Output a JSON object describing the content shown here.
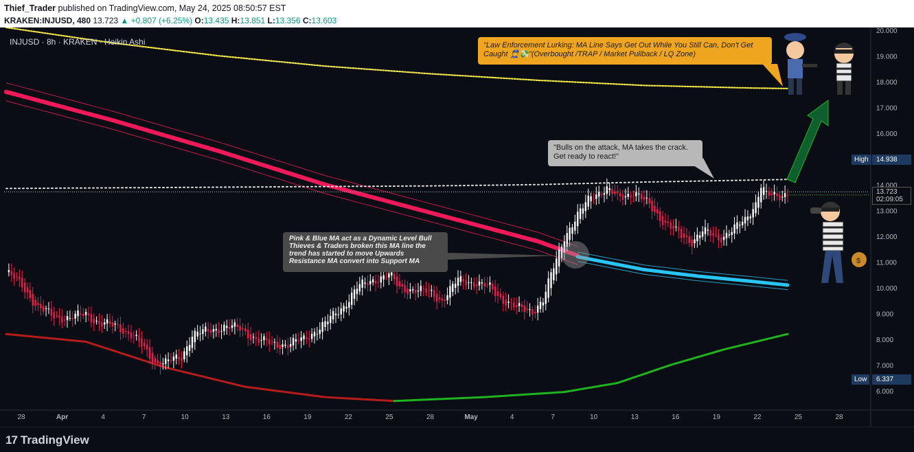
{
  "header": {
    "author": "Thief_Trader",
    "published": "published on TradingView.com, May 24, 2025 08:50:57 EST",
    "symbol": "KRAKEN:INJUSD, 480",
    "last": "13.723",
    "change": "▲ +0.807 (+6.25%)",
    "o_label": "O:",
    "o_value": "13.435",
    "h_label": "H:",
    "h_value": "13.851",
    "l_label": "L:",
    "l_value": "13.356",
    "c_label": "C:",
    "c_value": "13.603"
  },
  "legend": "INJUSD · 8h · KRAKEN · Heikin Ashi",
  "annotations": {
    "police": "\"Law Enforcement Lurking: MA Line Says Get Out While You Still Can, Don't Get Caught 👮💸\"(Overbought /TRAP / Market Pullback / LQ Zone)",
    "bulls": "\"Bulls on the attack, MA takes the crack. Get ready to react!\"",
    "ma_note": "Pink & Blue MA act as a Dynamic Level Bull Thieves & Traders broken this MA line the trend has started to move Upwards Resistance MA convert into Support MA"
  },
  "price_tags": {
    "high_label": "High",
    "high_value": "14.938",
    "low_label": "Low",
    "low_value": "6.337",
    "current_value": "13.723",
    "countdown": "02:09:05"
  },
  "footer": {
    "brand": "TradingView",
    "logo": "17"
  },
  "colors": {
    "up": "#ffffff",
    "down": "#e91e4c",
    "pink_ma": "#f0195a",
    "blue_ma": "#29c5f6",
    "yellow_ma": "#f3e74a",
    "red_ma": "#b71c1c",
    "green_ma": "#1fb31f",
    "bg": "#0b0d15"
  },
  "chart_data": {
    "type": "candlestick",
    "style": "Heikin Ashi",
    "timeframe": "8h",
    "x_tick_labels": [
      "28",
      "Apr",
      "4",
      "7",
      "10",
      "13",
      "16",
      "19",
      "22",
      "25",
      "28",
      "May",
      "4",
      "7",
      "10",
      "13",
      "16",
      "19",
      "22",
      "25",
      "28"
    ],
    "y_tick_labels": [
      "20.000",
      "19.000",
      "18.000",
      "17.000",
      "16.000",
      "15.000",
      "14.000",
      "13.000",
      "12.000",
      "11.000",
      "10.000",
      "9.000",
      "8.000",
      "7.000",
      "6.000"
    ],
    "ylim": [
      5.3,
      20.1
    ],
    "close_path": [
      [
        0,
        10.6
      ],
      [
        6,
        10.1
      ],
      [
        12,
        9.2
      ],
      [
        18,
        8.9
      ],
      [
        24,
        8.8
      ],
      [
        30,
        9.0
      ],
      [
        35,
        8.6
      ],
      [
        42,
        8.5
      ],
      [
        48,
        8.1
      ],
      [
        56,
        7.1
      ],
      [
        60,
        7.1
      ],
      [
        66,
        7.3
      ],
      [
        70,
        8.2
      ],
      [
        76,
        8.3
      ],
      [
        82,
        8.5
      ],
      [
        88,
        8.4
      ],
      [
        94,
        8.0
      ],
      [
        100,
        7.8
      ],
      [
        106,
        7.8
      ],
      [
        112,
        8.0
      ],
      [
        120,
        8.6
      ],
      [
        127,
        9.3
      ],
      [
        132,
        10.0
      ],
      [
        138,
        10.3
      ],
      [
        144,
        10.5
      ],
      [
        148,
        10.0
      ],
      [
        154,
        9.9
      ],
      [
        160,
        9.8
      ],
      [
        164,
        9.5
      ],
      [
        170,
        10.3
      ],
      [
        176,
        10.2
      ],
      [
        182,
        10.0
      ],
      [
        186,
        9.6
      ],
      [
        192,
        9.2
      ],
      [
        198,
        9.1
      ],
      [
        202,
        9.5
      ],
      [
        206,
        10.8
      ],
      [
        210,
        12.0
      ],
      [
        214,
        12.6
      ],
      [
        220,
        13.6
      ],
      [
        226,
        13.8
      ],
      [
        230,
        13.5
      ],
      [
        236,
        13.7
      ],
      [
        242,
        13.2
      ],
      [
        248,
        12.5
      ],
      [
        254,
        12.0
      ],
      [
        258,
        11.8
      ],
      [
        262,
        12.2
      ],
      [
        268,
        11.9
      ],
      [
        274,
        12.3
      ],
      [
        278,
        12.6
      ],
      [
        282,
        13.3
      ],
      [
        284,
        14.0
      ],
      [
        286,
        13.6
      ],
      [
        290,
        13.5
      ],
      [
        294,
        13.7
      ]
    ],
    "moving_averages": [
      {
        "name": "yellow",
        "points": [
          [
            0,
            20.1
          ],
          [
            40,
            19.5
          ],
          [
            80,
            19.0
          ],
          [
            120,
            18.6
          ],
          [
            160,
            18.3
          ],
          [
            200,
            18.05
          ],
          [
            240,
            17.85
          ],
          [
            280,
            17.75
          ],
          [
            294,
            17.73
          ]
        ]
      },
      {
        "name": "pink",
        "points": [
          [
            0,
            17.6
          ],
          [
            40,
            16.5
          ],
          [
            80,
            15.3
          ],
          [
            120,
            14.0
          ],
          [
            160,
            12.9
          ],
          [
            200,
            11.8
          ],
          [
            215,
            11.25
          ]
        ]
      },
      {
        "name": "blue",
        "points": [
          [
            215,
            11.2
          ],
          [
            240,
            10.7
          ],
          [
            260,
            10.45
          ],
          [
            280,
            10.25
          ],
          [
            294,
            10.1
          ]
        ]
      },
      {
        "name": "red",
        "points": [
          [
            0,
            8.2
          ],
          [
            30,
            7.9
          ],
          [
            60,
            6.9
          ],
          [
            90,
            6.15
          ],
          [
            120,
            5.75
          ],
          [
            146,
            5.6
          ]
        ]
      },
      {
        "name": "green",
        "points": [
          [
            146,
            5.6
          ],
          [
            180,
            5.75
          ],
          [
            210,
            5.95
          ],
          [
            230,
            6.3
          ],
          [
            250,
            7.0
          ],
          [
            270,
            7.6
          ],
          [
            294,
            8.2
          ]
        ]
      },
      {
        "name": "white_dotted",
        "points": [
          [
            0,
            13.85
          ],
          [
            80,
            13.9
          ],
          [
            160,
            13.95
          ],
          [
            200,
            14.0
          ],
          [
            240,
            14.1
          ],
          [
            294,
            14.2
          ]
        ]
      }
    ]
  }
}
